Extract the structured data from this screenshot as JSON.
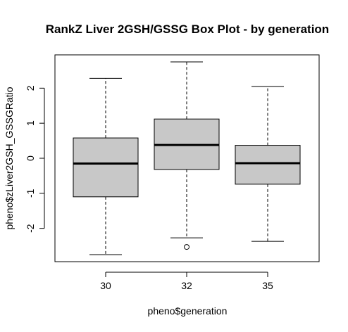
{
  "chart_data": {
    "type": "box",
    "title": "RankZ Liver 2GSH/GSSG Box Plot - by generation",
    "xlabel": "pheno$generation",
    "ylabel": "pheno$zLiver2GSH_GSSGRatio",
    "categories": [
      "30",
      "32",
      "35"
    ],
    "yticks": [
      -2,
      -1,
      0,
      1,
      2
    ],
    "ylim": [
      -2.95,
      2.95
    ],
    "grid": false,
    "legend": "none",
    "box_fill": "#c8c8c8",
    "boxes": [
      {
        "category": "30",
        "whisker_low": -2.75,
        "q1": -1.1,
        "median": -0.15,
        "q3": 0.58,
        "whisker_high": 2.28,
        "outliers": []
      },
      {
        "category": "32",
        "whisker_low": -2.27,
        "q1": -0.32,
        "median": 0.38,
        "q3": 1.12,
        "whisker_high": 2.75,
        "outliers": [
          -2.53
        ]
      },
      {
        "category": "35",
        "whisker_low": -2.37,
        "q1": -0.74,
        "median": -0.14,
        "q3": 0.37,
        "whisker_high": 2.05,
        "outliers": []
      }
    ]
  }
}
